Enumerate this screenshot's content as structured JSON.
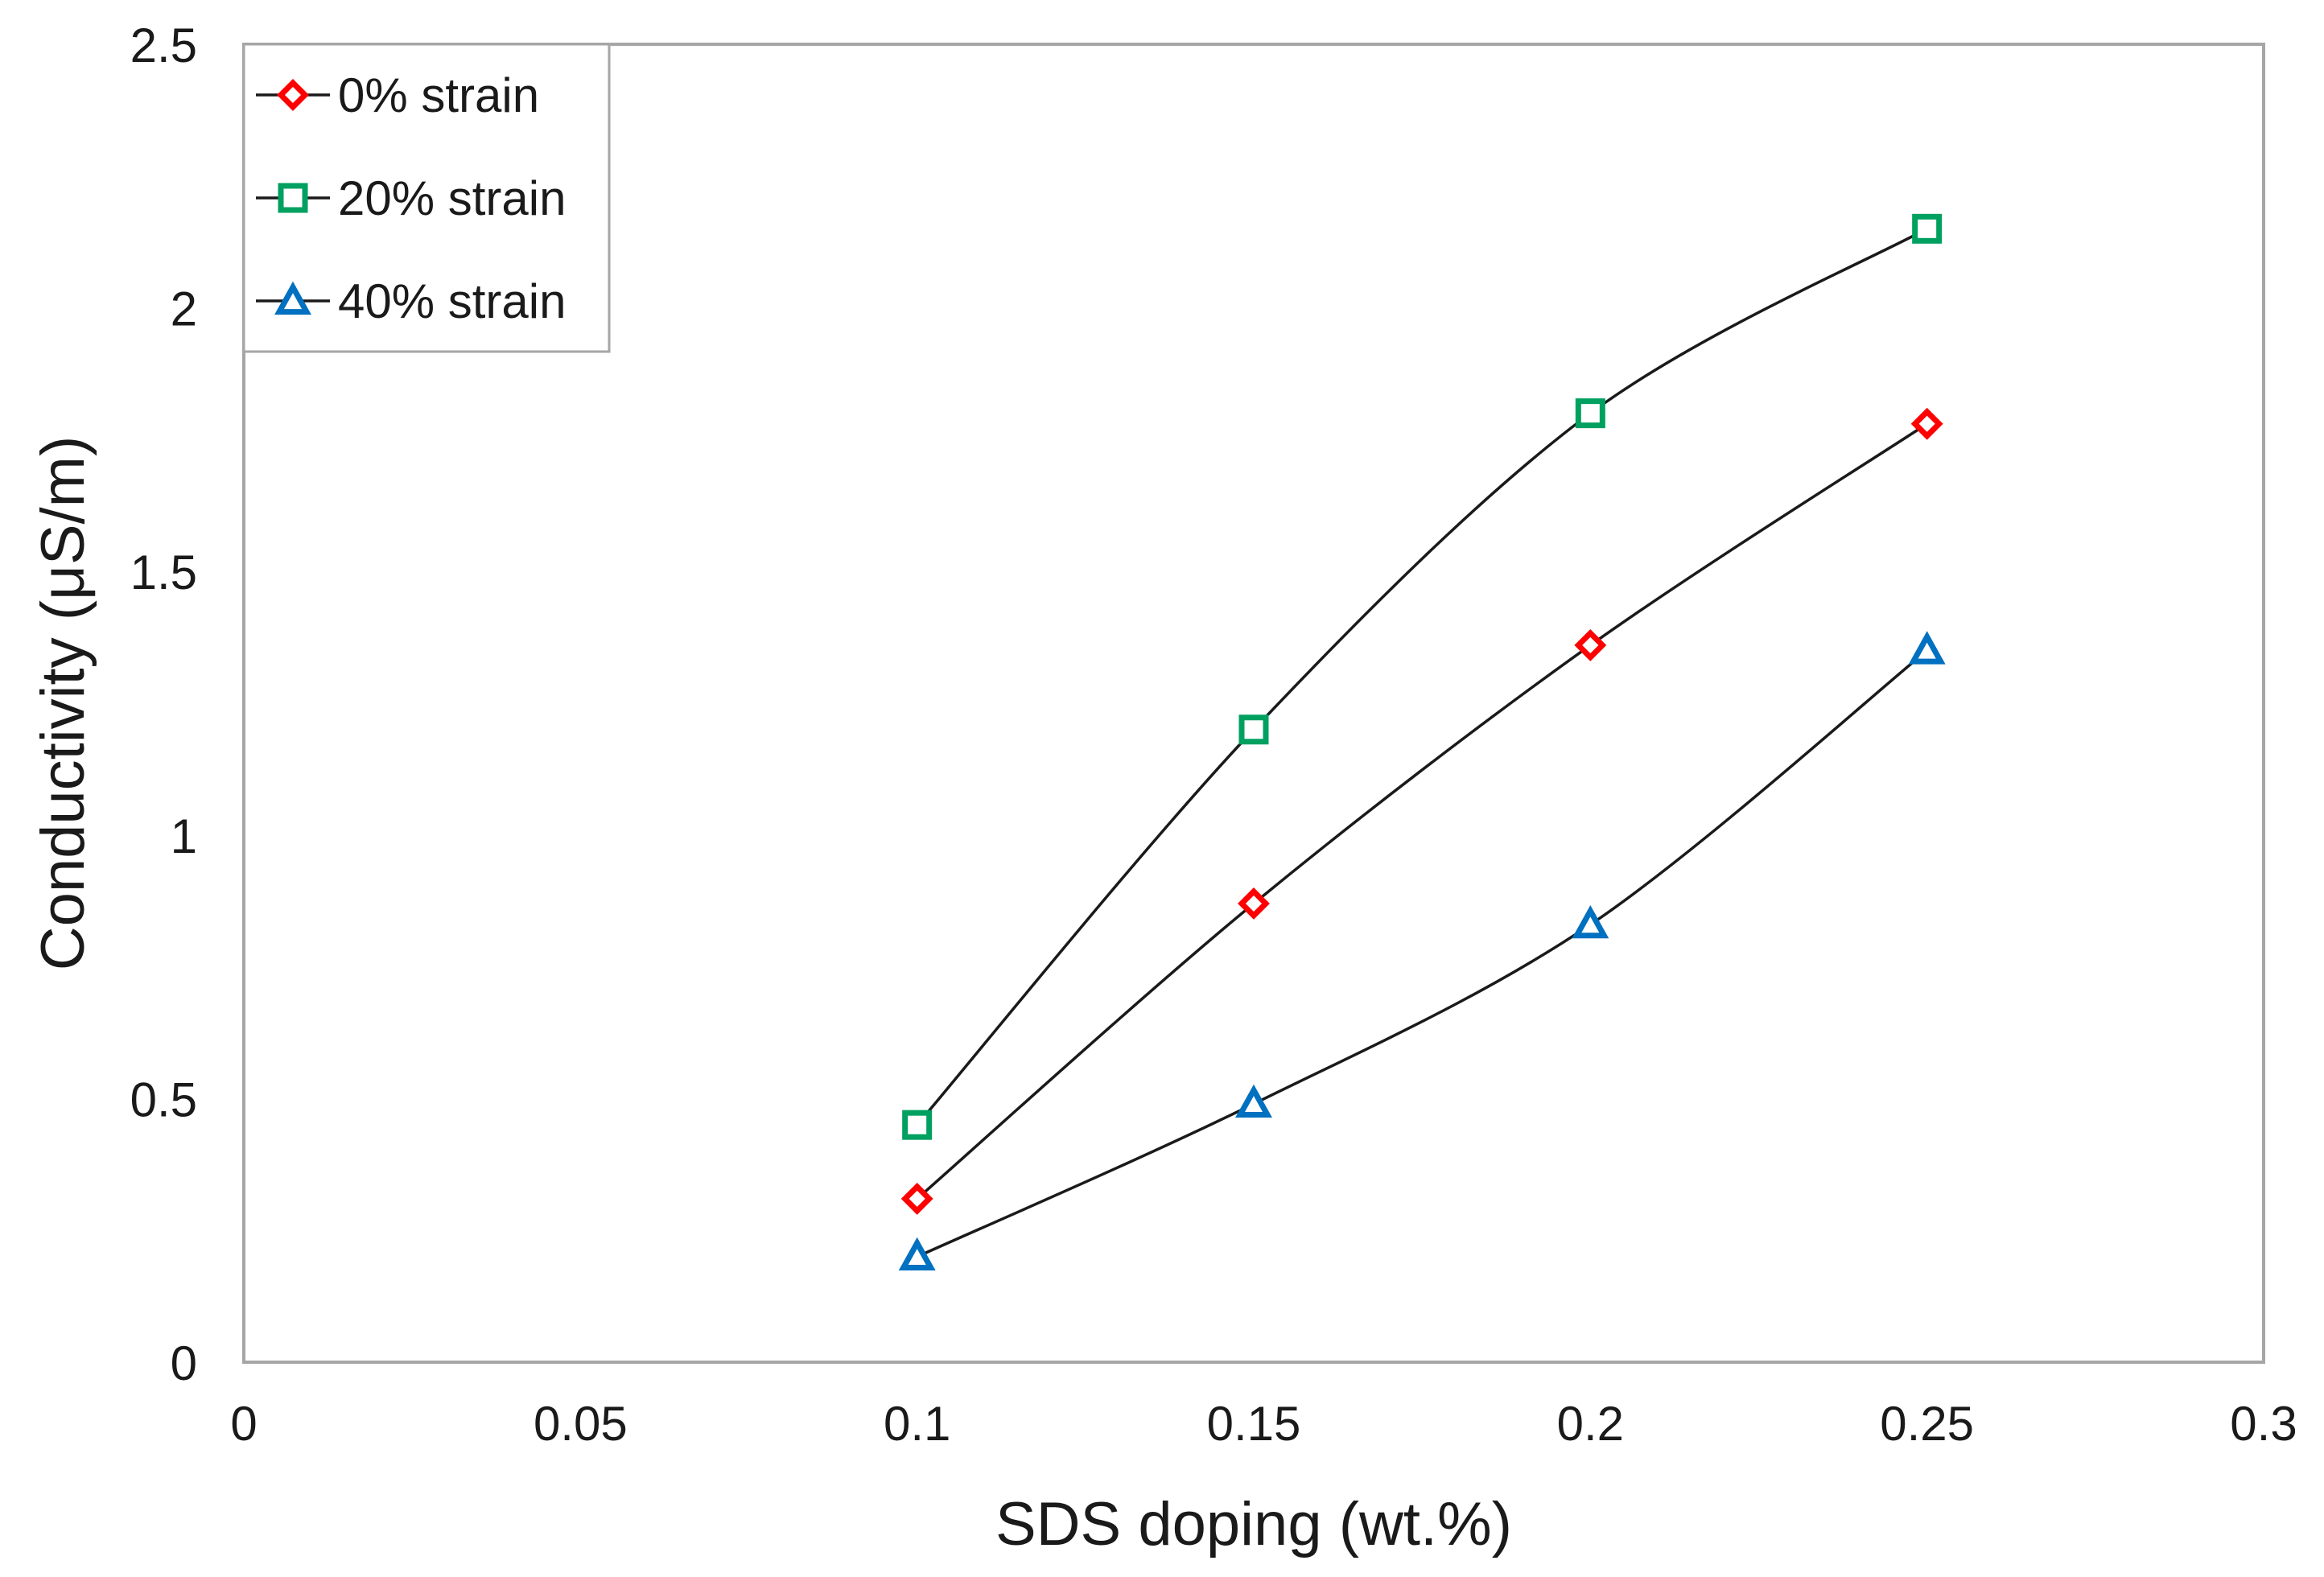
{
  "chart_data": {
    "type": "line",
    "title": "",
    "xlabel": "SDS doping (wt.%)",
    "ylabel": "Conductivity (μS/m)",
    "xlim": [
      0,
      0.3
    ],
    "ylim": [
      0,
      2.5
    ],
    "x_ticks": [
      "0",
      "0.05",
      "0.1",
      "0.15",
      "0.2",
      "0.25",
      "0.3"
    ],
    "y_ticks": [
      "0",
      "0.5",
      "1",
      "1.5",
      "2",
      "2.5"
    ],
    "grid": false,
    "legend_position": "top-left",
    "x": [
      0.1,
      0.15,
      0.2,
      0.25
    ],
    "series": [
      {
        "name": "0% strain",
        "marker": "diamond",
        "color": "#ff0000",
        "values": [
          0.31,
          0.87,
          1.36,
          1.78
        ]
      },
      {
        "name": "20% strain",
        "marker": "square",
        "color": "#00a060",
        "values": [
          0.45,
          1.2,
          1.8,
          2.15
        ]
      },
      {
        "name": "40% strain",
        "marker": "triangle",
        "color": "#0070c0",
        "values": [
          0.2,
          0.49,
          0.83,
          1.35
        ]
      }
    ],
    "line_color": "#1a1a1a",
    "frame_color": "#a6a6a6"
  }
}
